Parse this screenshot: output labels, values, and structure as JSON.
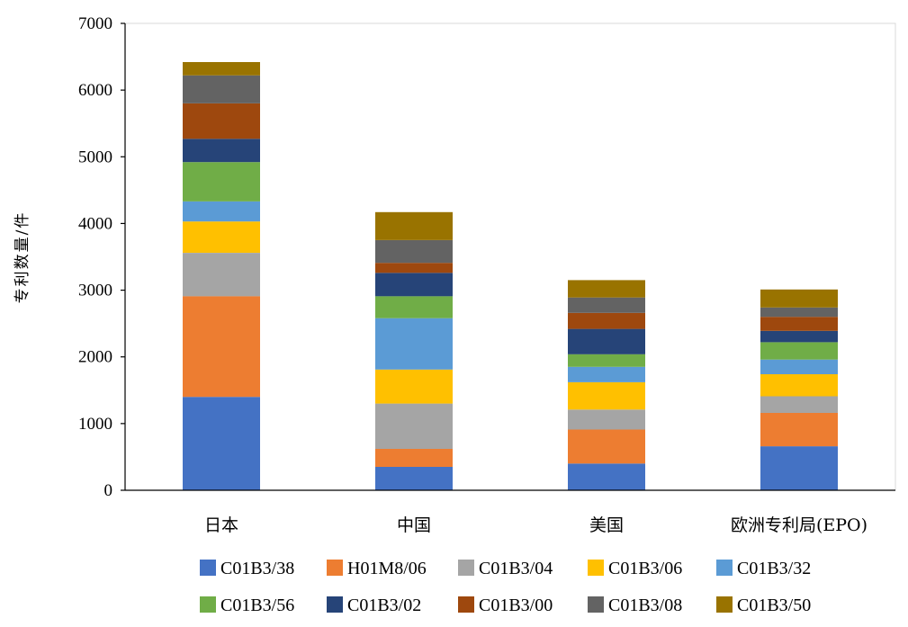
{
  "chart_data": {
    "type": "bar",
    "stacked": true,
    "title": "",
    "xlabel": "",
    "ylabel": "专利数量/件",
    "ylim": [
      0,
      7000
    ],
    "yticks": [
      0,
      1000,
      2000,
      3000,
      4000,
      5000,
      6000,
      7000
    ],
    "categories": [
      "日本",
      "中国",
      "美国",
      "欧洲专利局(EPO)"
    ],
    "series": [
      {
        "name": "C01B3/38",
        "color": "#4472C4",
        "values": [
          1400,
          350,
          400,
          660
        ]
      },
      {
        "name": "H01M8/06",
        "color": "#ED7D31",
        "values": [
          1510,
          270,
          510,
          500
        ]
      },
      {
        "name": "C01B3/04",
        "color": "#A5A5A5",
        "values": [
          650,
          680,
          300,
          250
        ]
      },
      {
        "name": "C01B3/06",
        "color": "#FFC000",
        "values": [
          470,
          510,
          410,
          330
        ]
      },
      {
        "name": "C01B3/32",
        "color": "#5B9BD5",
        "values": [
          300,
          770,
          230,
          220
        ]
      },
      {
        "name": "C01B3/56",
        "color": "#70AD47",
        "values": [
          590,
          330,
          190,
          260
        ]
      },
      {
        "name": "C01B3/02",
        "color": "#264478",
        "values": [
          350,
          350,
          380,
          170
        ]
      },
      {
        "name": "C01B3/00",
        "color": "#9E480E",
        "values": [
          530,
          150,
          240,
          210
        ]
      },
      {
        "name": "C01B3/08",
        "color": "#636363",
        "values": [
          420,
          340,
          230,
          140
        ]
      },
      {
        "name": "C01B3/50",
        "color": "#997300",
        "values": [
          200,
          420,
          260,
          270
        ]
      }
    ],
    "legend_position": "bottom",
    "grid": false
  }
}
